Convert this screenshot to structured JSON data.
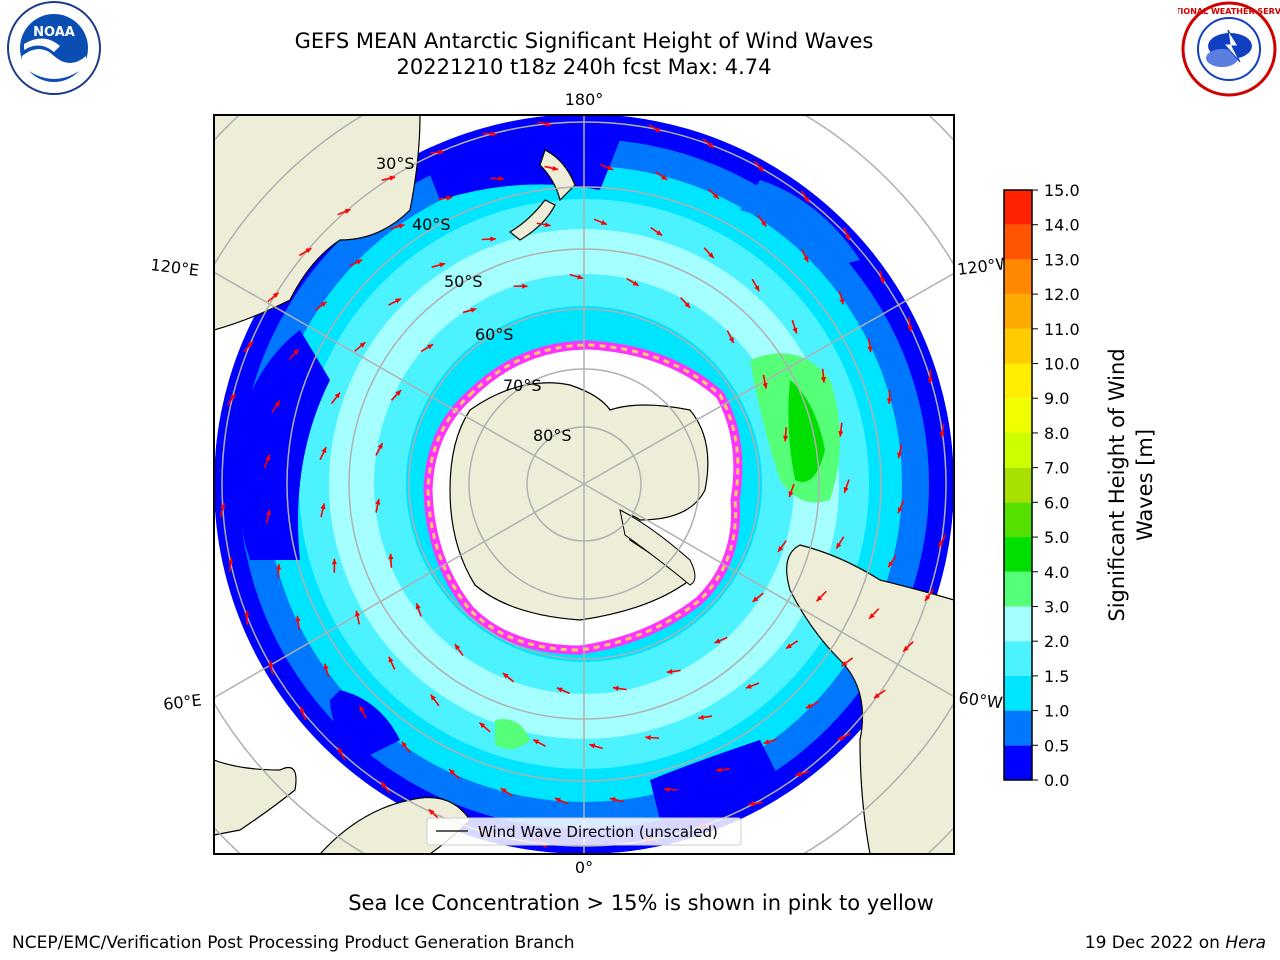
{
  "header": {
    "title_line1": "GEFS MEAN Antarctic Significant Height of Wind Waves",
    "title_line2": "20221210 t18z 240h fcst   Max: 4.74"
  },
  "logos": {
    "left": {
      "name": "noaa-logo",
      "text": "NOAA"
    },
    "right": {
      "name": "nws-logo",
      "text": "NATIONAL WEATHER SERVICE"
    }
  },
  "map": {
    "projection": "south-polar-stereographic",
    "longitude_labels": {
      "top": "180°",
      "bottom": "0°",
      "upper_left": "120°E",
      "upper_right": "120°W",
      "lower_left": "60°E",
      "lower_right": "60°W"
    },
    "latitude_labels": [
      "30°S",
      "40°S",
      "50°S",
      "60°S",
      "70°S",
      "80°S"
    ],
    "legend": "Wind Wave Direction (unscaled)",
    "colors": {
      "land": "#eeeed8",
      "ice_white": "#ffffff",
      "ice_edge": "#ff33ff",
      "arrow": "#ff0000",
      "grid": "#b0b0b0"
    }
  },
  "colorbar": {
    "label_line1": "Significant Height of Wind",
    "label_line2": "Waves [m]",
    "ticks": [
      "0.0",
      "0.5",
      "1.0",
      "1.5",
      "2.0",
      "3.0",
      "4.0",
      "5.0",
      "6.0",
      "7.0",
      "8.0",
      "9.0",
      "10.0",
      "11.0",
      "12.0",
      "13.0",
      "14.0",
      "15.0"
    ],
    "colors": [
      "#0000ff",
      "#0077ff",
      "#00e5ff",
      "#4df2ff",
      "#a6ffff",
      "#55ff77",
      "#00e000",
      "#55e000",
      "#a8e000",
      "#ccff00",
      "#f0ff00",
      "#ffee00",
      "#ffcc00",
      "#ffaa00",
      "#ff8800",
      "#ff5500",
      "#ff2200"
    ]
  },
  "notes": {
    "sea_ice": "Sea Ice Concentration > 15% is shown in pink to yellow"
  },
  "footer": {
    "left": "NCEP/EMC/Verification Post Processing Product Generation Branch",
    "date": "19 Dec 2022 on ",
    "machine": "Hera"
  }
}
